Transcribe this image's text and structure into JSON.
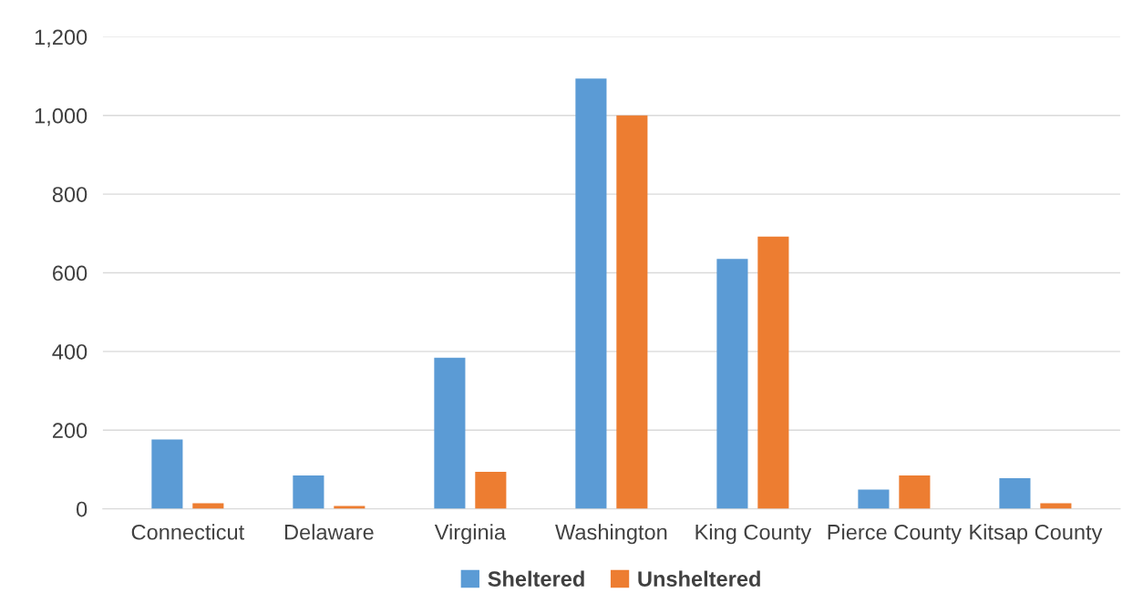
{
  "chart_data": {
    "type": "bar",
    "categories": [
      "Connecticut",
      "Delaware",
      "Virginia",
      "Washington",
      "King County",
      "Pierce County",
      "Kitsap County"
    ],
    "series": [
      {
        "name": "Sheltered",
        "color": "#5b9bd5",
        "values": [
          176,
          85,
          384,
          1094,
          635,
          49,
          78
        ]
      },
      {
        "name": "Unsheltered",
        "color": "#ed7d31",
        "values": [
          14,
          7,
          94,
          1000,
          692,
          85,
          14
        ]
      }
    ],
    "ylim": [
      0,
      1200
    ],
    "yticks": [
      {
        "value": 0,
        "label": "0"
      },
      {
        "value": 200,
        "label": "200"
      },
      {
        "value": 400,
        "label": "400"
      },
      {
        "value": 600,
        "label": "600"
      },
      {
        "value": 800,
        "label": "800"
      },
      {
        "value": 1000,
        "label": "1,000"
      },
      {
        "value": 1200,
        "label": "1,200"
      }
    ],
    "grid": "y",
    "legend": "bottom"
  }
}
